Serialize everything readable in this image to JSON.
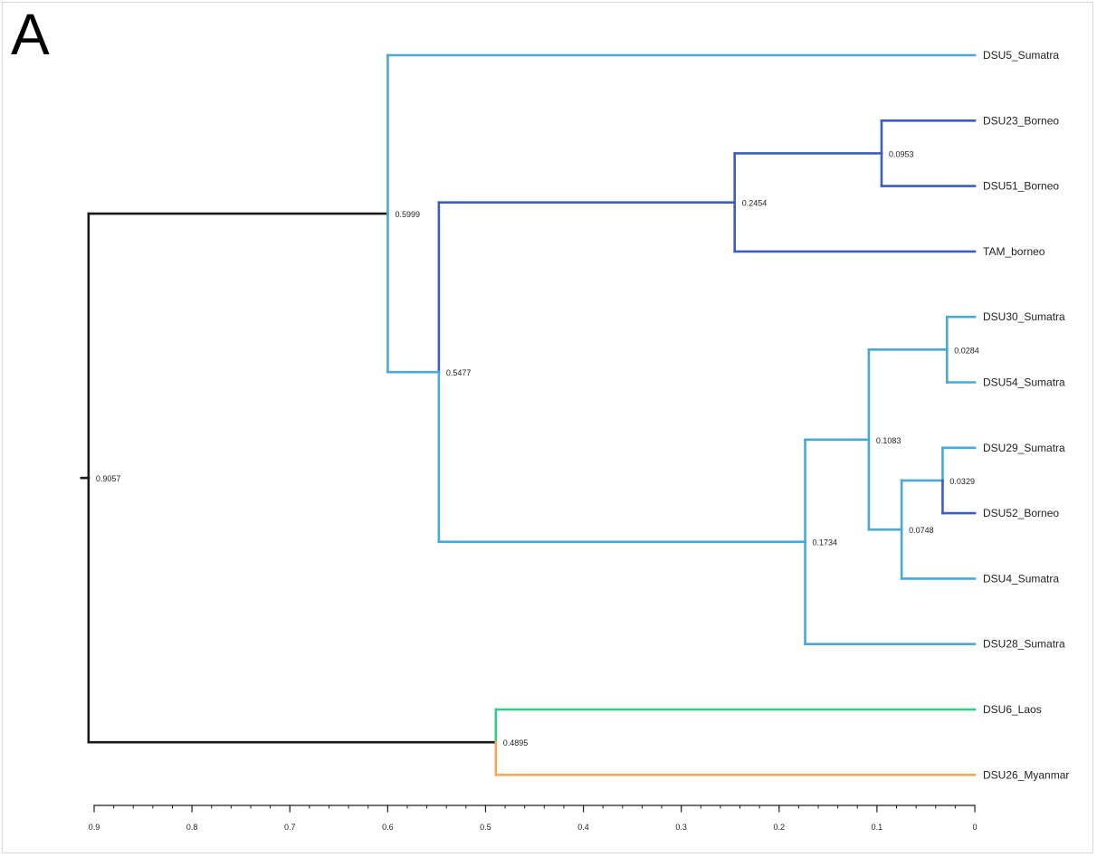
{
  "panel_label": "A",
  "colors": {
    "black": "#1a1a1a",
    "sumatra": "#4aa8d8",
    "borneo": "#3d5cc4",
    "laos": "#2ecc8a",
    "myanmar": "#f4a858"
  },
  "axis": {
    "min": 0,
    "max": 0.9,
    "reversed": true,
    "ticks": [
      {
        "value": 0.9,
        "label": "0.9"
      },
      {
        "value": 0.8,
        "label": "0.8"
      },
      {
        "value": 0.7,
        "label": "0.7"
      },
      {
        "value": 0.6,
        "label": "0.6"
      },
      {
        "value": 0.5,
        "label": "0.5"
      },
      {
        "value": 0.4,
        "label": "0.4"
      },
      {
        "value": 0.3,
        "label": "0.3"
      },
      {
        "value": 0.2,
        "label": "0.2"
      },
      {
        "value": 0.1,
        "label": "0.1"
      },
      {
        "value": 0,
        "label": "0"
      }
    ],
    "minor_step": 0.02
  },
  "leaves": [
    {
      "id": "DSU5",
      "label": "DSU5_Sumatra",
      "color": "sumatra"
    },
    {
      "id": "DSU23",
      "label": "DSU23_Borneo",
      "color": "borneo"
    },
    {
      "id": "DSU51",
      "label": "DSU51_Borneo",
      "color": "borneo"
    },
    {
      "id": "TAM",
      "label": "TAM_borneo",
      "color": "borneo"
    },
    {
      "id": "DSU30",
      "label": "DSU30_Sumatra",
      "color": "sumatra"
    },
    {
      "id": "DSU54",
      "label": "DSU54_Sumatra",
      "color": "sumatra"
    },
    {
      "id": "DSU29",
      "label": "DSU29_Sumatra",
      "color": "sumatra"
    },
    {
      "id": "DSU52",
      "label": "DSU52_Borneo",
      "color": "borneo"
    },
    {
      "id": "DSU4",
      "label": "DSU4_Sumatra",
      "color": "sumatra"
    },
    {
      "id": "DSU28",
      "label": "DSU28_Sumatra",
      "color": "sumatra"
    },
    {
      "id": "DSU6",
      "label": "DSU6_Laos",
      "color": "laos"
    },
    {
      "id": "DSU26",
      "label": "DSU26_Myanmar",
      "color": "myanmar"
    }
  ],
  "nodes": [
    {
      "id": "n_root",
      "height": 0.9057,
      "label": "0.9057",
      "children": [
        "n_5999",
        "n_4895"
      ],
      "color": "black",
      "child_colors": [
        "black",
        "black"
      ]
    },
    {
      "id": "n_5999",
      "height": 0.5999,
      "label": "0.5999",
      "children": [
        "DSU5",
        "n_5477"
      ],
      "color": "sumatra",
      "child_colors": [
        "sumatra",
        "sumatra"
      ]
    },
    {
      "id": "n_5477",
      "height": 0.5477,
      "label": "0.5477",
      "children": [
        "n_2454",
        "n_1734"
      ],
      "color": "borneo",
      "child_colors": [
        "borneo",
        "sumatra"
      ]
    },
    {
      "id": "n_2454",
      "height": 0.2454,
      "label": "0.2454",
      "children": [
        "n_0953",
        "TAM"
      ],
      "color": "borneo",
      "child_colors": [
        "borneo",
        "borneo"
      ]
    },
    {
      "id": "n_0953",
      "height": 0.0953,
      "label": "0.0953",
      "children": [
        "DSU23",
        "DSU51"
      ],
      "color": "borneo",
      "child_colors": [
        "borneo",
        "borneo"
      ]
    },
    {
      "id": "n_1734",
      "height": 0.1734,
      "label": "0.1734",
      "children": [
        "n_1083",
        "DSU28"
      ],
      "color": "sumatra",
      "child_colors": [
        "sumatra",
        "sumatra"
      ]
    },
    {
      "id": "n_1083",
      "height": 0.1083,
      "label": "0.1083",
      "children": [
        "n_0284",
        "n_0748"
      ],
      "color": "sumatra",
      "child_colors": [
        "sumatra",
        "sumatra"
      ]
    },
    {
      "id": "n_0284",
      "height": 0.0284,
      "label": "0.0284",
      "children": [
        "DSU30",
        "DSU54"
      ],
      "color": "sumatra",
      "child_colors": [
        "sumatra",
        "sumatra"
      ]
    },
    {
      "id": "n_0748",
      "height": 0.0748,
      "label": "0.0748",
      "children": [
        "n_0329",
        "DSU4"
      ],
      "color": "sumatra",
      "child_colors": [
        "sumatra",
        "sumatra"
      ]
    },
    {
      "id": "n_0329",
      "height": 0.0329,
      "label": "0.0329",
      "children": [
        "DSU29",
        "DSU52"
      ],
      "color": "borneo",
      "child_colors": [
        "sumatra",
        "borneo"
      ]
    },
    {
      "id": "n_4895",
      "height": 0.4895,
      "label": "0.4895",
      "children": [
        "DSU6",
        "DSU26"
      ],
      "color": "laos",
      "child_colors": [
        "laos",
        "myanmar"
      ]
    }
  ]
}
